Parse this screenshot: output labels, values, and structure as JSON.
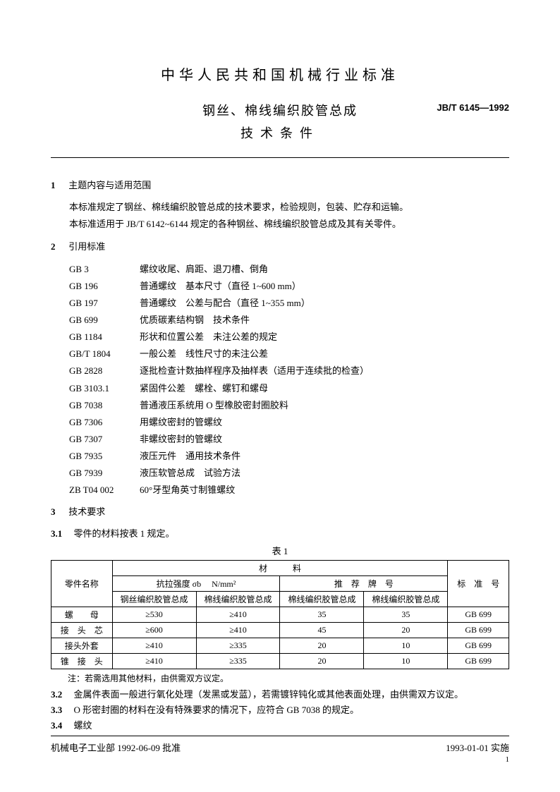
{
  "header": {
    "org_title": "中华人民共和国机械行业标准",
    "main_title": "钢丝、棉线编织胶管总成",
    "sub_title": "技术条件",
    "standard_code": "JB/T 6145—1992"
  },
  "section1": {
    "num": "1",
    "title": "主题内容与适用范围",
    "p1": "本标准规定了钢丝、棉线编织胶管总成的技术要求，检验规则，包装、贮存和运输。",
    "p2": "本标准适用于 JB/T 6142~6144 规定的各种钢丝、棉线编织胶管总成及其有关零件。"
  },
  "section2": {
    "num": "2",
    "title": "引用标准",
    "refs": [
      {
        "code": "GB 3",
        "desc": "螺纹收尾、肩距、退刀槽、倒角"
      },
      {
        "code": "GB 196",
        "desc": "普通螺纹　基本尺寸（直径 1~600 mm）"
      },
      {
        "code": "GB 197",
        "desc": "普通螺纹　公差与配合（直径 1~355 mm）"
      },
      {
        "code": "GB 699",
        "desc": "优质碳素结构钢　技术条件"
      },
      {
        "code": "GB 1184",
        "desc": "形状和位置公差　未注公差的规定"
      },
      {
        "code": "GB/T 1804",
        "desc": "一般公差　线性尺寸的未注公差"
      },
      {
        "code": "GB 2828",
        "desc": "逐批检查计数抽样程序及抽样表（适用于连续批的检查）"
      },
      {
        "code": "GB 3103.1",
        "desc": "紧固件公差　螺栓、螺钉和螺母"
      },
      {
        "code": "GB 7038",
        "desc": "普通液压系统用 O 型橡胶密封圈胶料"
      },
      {
        "code": "GB 7306",
        "desc": "用螺纹密封的管螺纹"
      },
      {
        "code": "GB 7307",
        "desc": "非螺纹密封的管螺纹"
      },
      {
        "code": "GB 7935",
        "desc": "液压元件　通用技术条件"
      },
      {
        "code": "GB 7939",
        "desc": "液压软管总成　试验方法"
      },
      {
        "code": "ZB T04 002",
        "desc": "60°牙型角英寸制锥螺纹"
      }
    ]
  },
  "section3": {
    "num": "3",
    "title": "技术要求",
    "c31_num": "3.1",
    "c31_text": "零件的材料按表 1 规定。",
    "table_caption": "表 1",
    "table": {
      "header": {
        "col_part": "零件名称",
        "col_material": "材　　　料",
        "col_tensile": "抗拉强度 σb 　N/mm²",
        "col_grade": "推　荐　牌　号",
        "col_std": "标　准　号",
        "sub_steel": "钢丝编织胶管总成",
        "sub_cotton": "棉线编织胶管总成"
      },
      "rows": [
        {
          "part": "螺　　母",
          "v1": "≥530",
          "v2": "≥410",
          "v3": "35",
          "v4": "35",
          "std": "GB 699"
        },
        {
          "part": "接　头　芯",
          "v1": "≥600",
          "v2": "≥410",
          "v3": "45",
          "v4": "20",
          "std": "GB 699"
        },
        {
          "part": "接头外套",
          "v1": "≥410",
          "v2": "≥335",
          "v3": "20",
          "v4": "10",
          "std": "GB 699"
        },
        {
          "part": "锥　接　头",
          "v1": "≥410",
          "v2": "≥335",
          "v3": "20",
          "v4": "10",
          "std": "GB 699"
        }
      ]
    },
    "table_note": "注：若需选用其他材料，由供需双方议定。",
    "c32_num": "3.2",
    "c32_text": "金属件表面一般进行氧化处理（发黑或发蓝），若需镀锌钝化或其他表面处理，由供需双方议定。",
    "c33_num": "3.3",
    "c33_text": "O 形密封圈的材料在没有特殊要求的情况下，应符合 GB 7038 的规定。",
    "c34_num": "3.4",
    "c34_text": "螺纹"
  },
  "footer": {
    "left": "机械电子工业部 1992-06-09 批准",
    "right": "1993-01-01 实施",
    "page": "1"
  }
}
